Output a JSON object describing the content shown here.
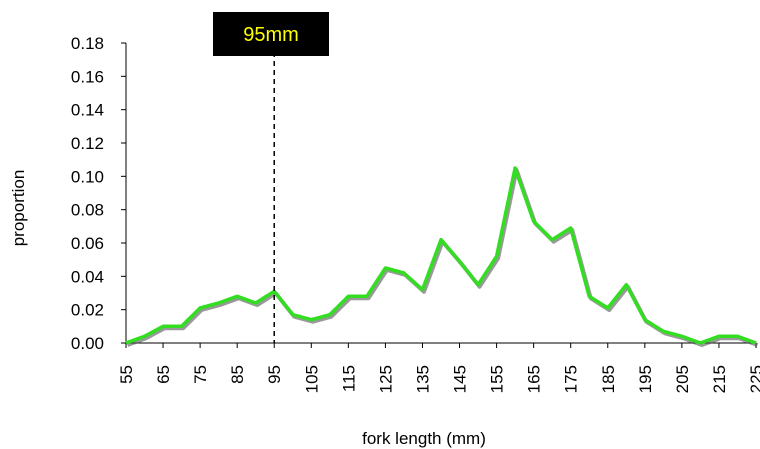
{
  "chart_data": {
    "type": "line",
    "title": "",
    "xlabel": "fork length (mm)",
    "ylabel": "proportion",
    "ylim": [
      0,
      0.18
    ],
    "yticks": [
      "0.00",
      "0.02",
      "0.04",
      "0.06",
      "0.08",
      "0.10",
      "0.12",
      "0.14",
      "0.16",
      "0.18"
    ],
    "xlim": [
      55,
      225
    ],
    "xticks": [
      "55",
      "65",
      "75",
      "85",
      "95",
      "105",
      "115",
      "125",
      "135",
      "145",
      "155",
      "165",
      "175",
      "185",
      "195",
      "205",
      "215",
      "225"
    ],
    "grid": false,
    "legend": "none",
    "series": [
      {
        "color": "#33dd22",
        "shadow_color": "#555555",
        "x": [
          55,
          60,
          65,
          70,
          75,
          80,
          85,
          90,
          95,
          100,
          105,
          110,
          115,
          120,
          125,
          130,
          135,
          140,
          145,
          150,
          155,
          160,
          165,
          170,
          175,
          180,
          185,
          190,
          195,
          200,
          205,
          210,
          215,
          220,
          225
        ],
        "values": [
          0.0,
          0.004,
          0.01,
          0.01,
          0.021,
          0.024,
          0.028,
          0.024,
          0.031,
          0.017,
          0.014,
          0.017,
          0.028,
          0.028,
          0.045,
          0.042,
          0.032,
          0.062,
          0.049,
          0.035,
          0.052,
          0.105,
          0.073,
          0.062,
          0.069,
          0.028,
          0.021,
          0.035,
          0.014,
          0.007,
          0.004,
          0.0,
          0.004,
          0.004,
          0.0
        ]
      }
    ],
    "annotation": {
      "label": "95mm",
      "x": 95,
      "bg_color": "#000000",
      "text_color": "#ffff00",
      "line_style": "dashed"
    }
  }
}
